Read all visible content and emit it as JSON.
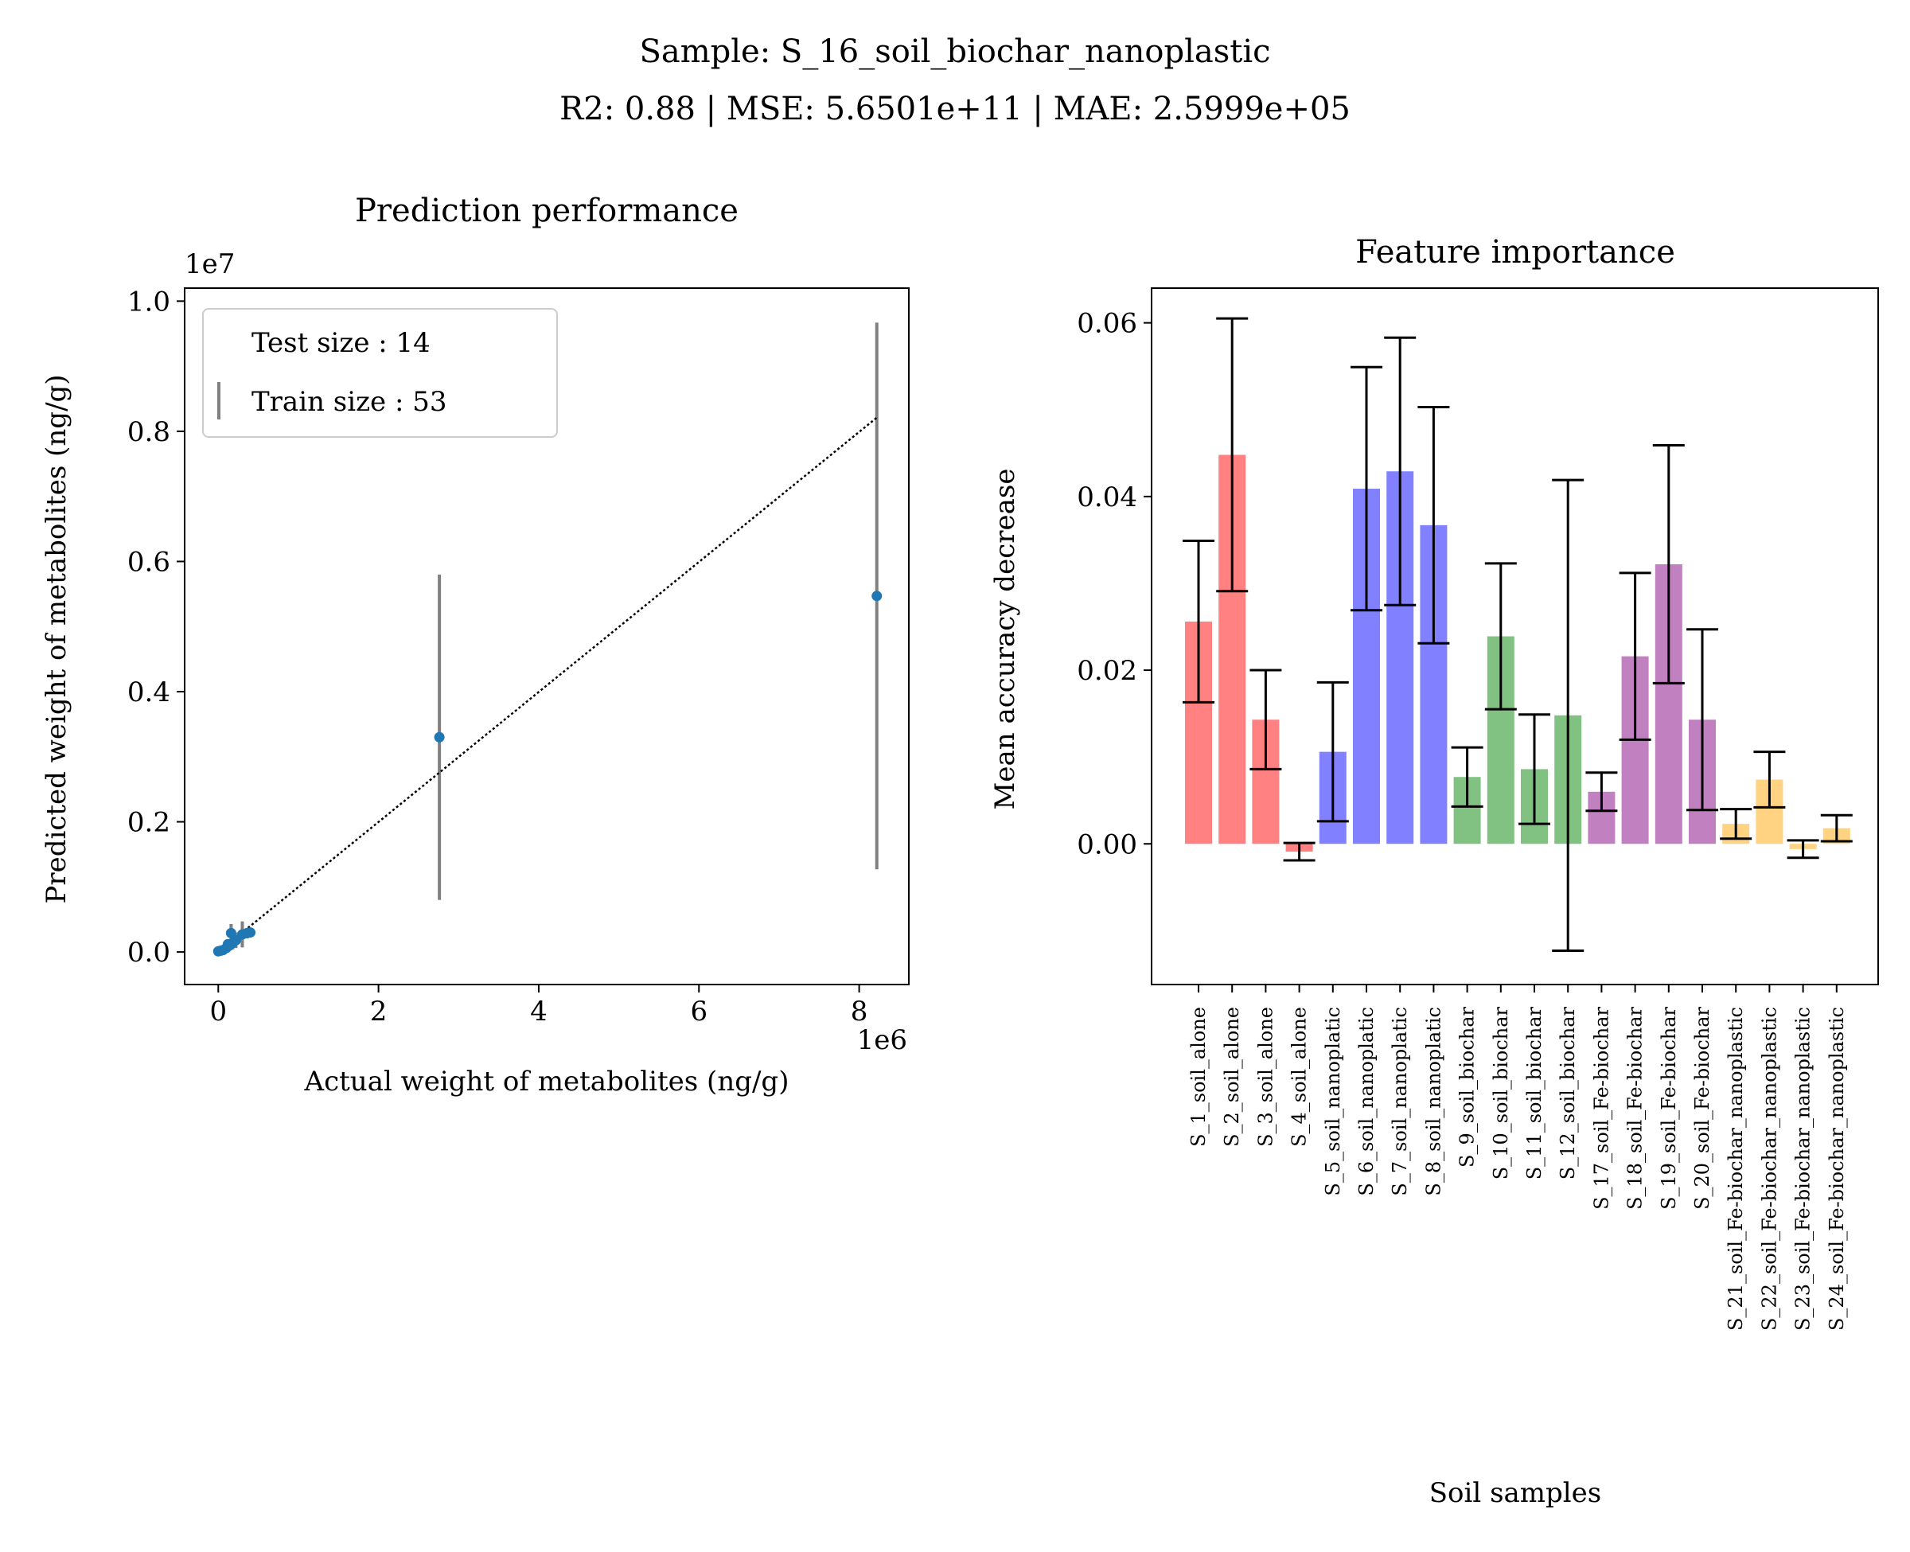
{
  "figure": {
    "suptitle_line1": "Sample: S_16_soil_biochar_nanoplastic",
    "suptitle_line2": "R2: 0.88 | MSE: 5.6501e+11 | MAE: 2.5999e+05"
  },
  "chart_data": [
    {
      "type": "scatter",
      "title": "Prediction performance",
      "xlabel": "Actual weight of metabolites (ng/g)",
      "ylabel": "Predicted weight of metabolites (ng/g)",
      "x_offset_label": "1e6",
      "y_offset_label": "1e7",
      "xlim": [
        -0.42,
        8.62
      ],
      "ylim": [
        -0.05,
        1.02
      ],
      "xticks": [
        0,
        2,
        4,
        6,
        8
      ],
      "xtick_labels": [
        "0",
        "2",
        "4",
        "6",
        "8"
      ],
      "yticks": [
        0.0,
        0.2,
        0.4,
        0.6,
        0.8,
        1.0
      ],
      "ytick_labels": [
        "0.0",
        "0.2",
        "0.4",
        "0.6",
        "0.8",
        "1.0"
      ],
      "legend": {
        "placement": "upper-left",
        "entries": [
          "Test size : 14",
          "Train size : 53"
        ]
      },
      "points_note": "x in units of 1e6 ng/g, y in units of 1e7 ng/g",
      "points": [
        {
          "x": 0.0,
          "y": 0.001,
          "err": 0.003
        },
        {
          "x": 0.03,
          "y": 0.002,
          "err": 0.003
        },
        {
          "x": 0.06,
          "y": 0.003,
          "err": 0.004
        },
        {
          "x": 0.1,
          "y": 0.006,
          "err": 0.006
        },
        {
          "x": 0.14,
          "y": 0.01,
          "err": 0.008
        },
        {
          "x": 0.18,
          "y": 0.014,
          "err": 0.01
        },
        {
          "x": 0.16,
          "y": 0.029,
          "err": 0.014
        },
        {
          "x": 0.22,
          "y": 0.018,
          "err": 0.012
        },
        {
          "x": 0.3,
          "y": 0.027,
          "err": 0.02
        },
        {
          "x": 0.36,
          "y": 0.029,
          "err": 0.008
        },
        {
          "x": 0.4,
          "y": 0.03,
          "err": 0.005
        },
        {
          "x": 0.12,
          "y": 0.012,
          "err": 0.006
        },
        {
          "x": 2.76,
          "y": 0.33,
          "err": 0.25
        },
        {
          "x": 8.22,
          "y": 0.547,
          "err": 0.42
        }
      ],
      "fit_line": {
        "x": [
          0.0,
          8.22
        ],
        "y": [
          0.0,
          0.821
        ]
      },
      "colors": {
        "points": "#1f77b4",
        "errorbars": "#808080",
        "fit": "#000000"
      }
    },
    {
      "type": "bar",
      "title": "Feature importance",
      "xlabel": "Soil samples",
      "ylabel": "Mean accuracy decrease",
      "ylim": [
        -0.0162,
        0.064
      ],
      "yticks": [
        0.0,
        0.02,
        0.04,
        0.06
      ],
      "ytick_labels": [
        "0.00",
        "0.02",
        "0.04",
        "0.06"
      ],
      "categories": [
        "S_1_soil_alone",
        "S_2_soil_alone",
        "S_3_soil_alone",
        "S_4_soil_alone",
        "S_5_soil_nanoplatic",
        "S_6_soil_nanoplatic",
        "S_7_soil_nanoplatic",
        "S_8_soil_nanoplatic",
        "S_9_soil_biochar",
        "S_10_soil_biochar",
        "S_11_soil_biochar",
        "S_12_soil_biochar",
        "S_17_soil_Fe-biochar",
        "S_18_soil_Fe-biochar",
        "S_19_soil_Fe-biochar",
        "S_20_soil_Fe-biochar",
        "S_21_soil_Fe-biochar_nanoplastic",
        "S_22_soil_Fe-biochar_nanoplastic",
        "S_23_soil_Fe-biochar_nanoplastic",
        "S_24_soil_Fe-biochar_nanoplastic"
      ],
      "values": [
        0.0256,
        0.0448,
        0.0143,
        -0.0009,
        0.0106,
        0.0409,
        0.0429,
        0.0367,
        0.0077,
        0.0239,
        0.0086,
        0.0148,
        0.006,
        0.0216,
        0.0322,
        0.0143,
        0.0023,
        0.0074,
        -0.0006,
        0.0018
      ],
      "errors": [
        0.0093,
        0.0157,
        0.0057,
        0.001,
        0.008,
        0.014,
        0.0154,
        0.0136,
        0.0034,
        0.0084,
        0.0063,
        0.0271,
        0.0022,
        0.0096,
        0.0137,
        0.0104,
        0.0017,
        0.0032,
        0.001,
        0.0015
      ],
      "bar_colors": [
        "#ff4c4c",
        "#ff4c4c",
        "#ff4c4c",
        "#ff4c4c",
        "#4c4cff",
        "#4c4cff",
        "#4c4cff",
        "#4c4cff",
        "#4ca64c",
        "#4ca64c",
        "#4ca64c",
        "#4ca64c",
        "#a64ca6",
        "#a64ca6",
        "#a64ca6",
        "#a64ca6",
        "#ffc04c",
        "#ffc04c",
        "#ffc04c",
        "#ffc04c"
      ]
    }
  ]
}
